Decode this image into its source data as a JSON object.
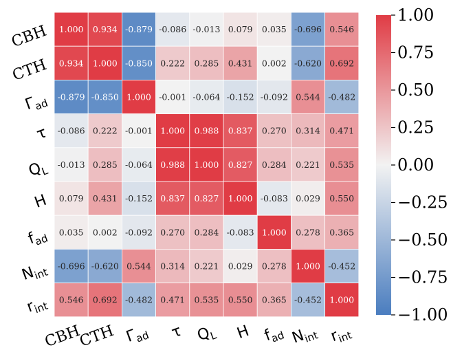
{
  "chart_data": {
    "type": "heatmap",
    "labels": [
      {
        "main": "CBH",
        "sub": "",
        "serif": true
      },
      {
        "main": "CTH",
        "sub": "",
        "serif": true
      },
      {
        "main": "Γ",
        "sub": "ad",
        "serif": false
      },
      {
        "main": "τ",
        "sub": "",
        "serif": false
      },
      {
        "main": "Q",
        "sub": "L",
        "serif": false
      },
      {
        "main": "H",
        "sub": "",
        "serif": false
      },
      {
        "main": "f",
        "sub": "ad",
        "serif": false
      },
      {
        "main": "N",
        "sub": "int",
        "serif": false
      },
      {
        "main": "r",
        "sub": "int",
        "serif": false
      }
    ],
    "matrix": [
      [
        1.0,
        0.934,
        -0.879,
        -0.086,
        -0.013,
        0.079,
        0.035,
        -0.696,
        0.546
      ],
      [
        0.934,
        1.0,
        -0.85,
        0.222,
        0.285,
        0.431,
        0.002,
        -0.62,
        0.692
      ],
      [
        -0.879,
        -0.85,
        1.0,
        -0.001,
        -0.064,
        -0.152,
        -0.092,
        0.544,
        -0.482
      ],
      [
        -0.086,
        0.222,
        -0.001,
        1.0,
        0.988,
        0.837,
        0.27,
        0.314,
        0.471
      ],
      [
        -0.013,
        0.285,
        -0.064,
        0.988,
        1.0,
        0.827,
        0.284,
        0.221,
        0.535
      ],
      [
        0.079,
        0.431,
        -0.152,
        0.837,
        0.827,
        1.0,
        -0.083,
        0.029,
        0.55
      ],
      [
        0.035,
        0.002,
        -0.092,
        0.27,
        0.284,
        -0.083,
        1.0,
        0.278,
        0.365
      ],
      [
        -0.696,
        -0.62,
        0.544,
        0.314,
        0.221,
        0.029,
        0.278,
        1.0,
        -0.452
      ],
      [
        0.546,
        0.692,
        -0.482,
        0.471,
        0.535,
        0.55,
        0.365,
        -0.452,
        1.0
      ]
    ],
    "vmin": -1.0,
    "vmax": 1.0,
    "colorbar_ticks": [
      "1.00",
      "0.75",
      "0.50",
      "0.25",
      "0.00",
      "−0.25",
      "−0.50",
      "−0.75",
      "−1.00"
    ],
    "colormap": {
      "negative": "#4a7dbf",
      "center": "#f2f2f2",
      "positive": "#e03c45"
    }
  }
}
